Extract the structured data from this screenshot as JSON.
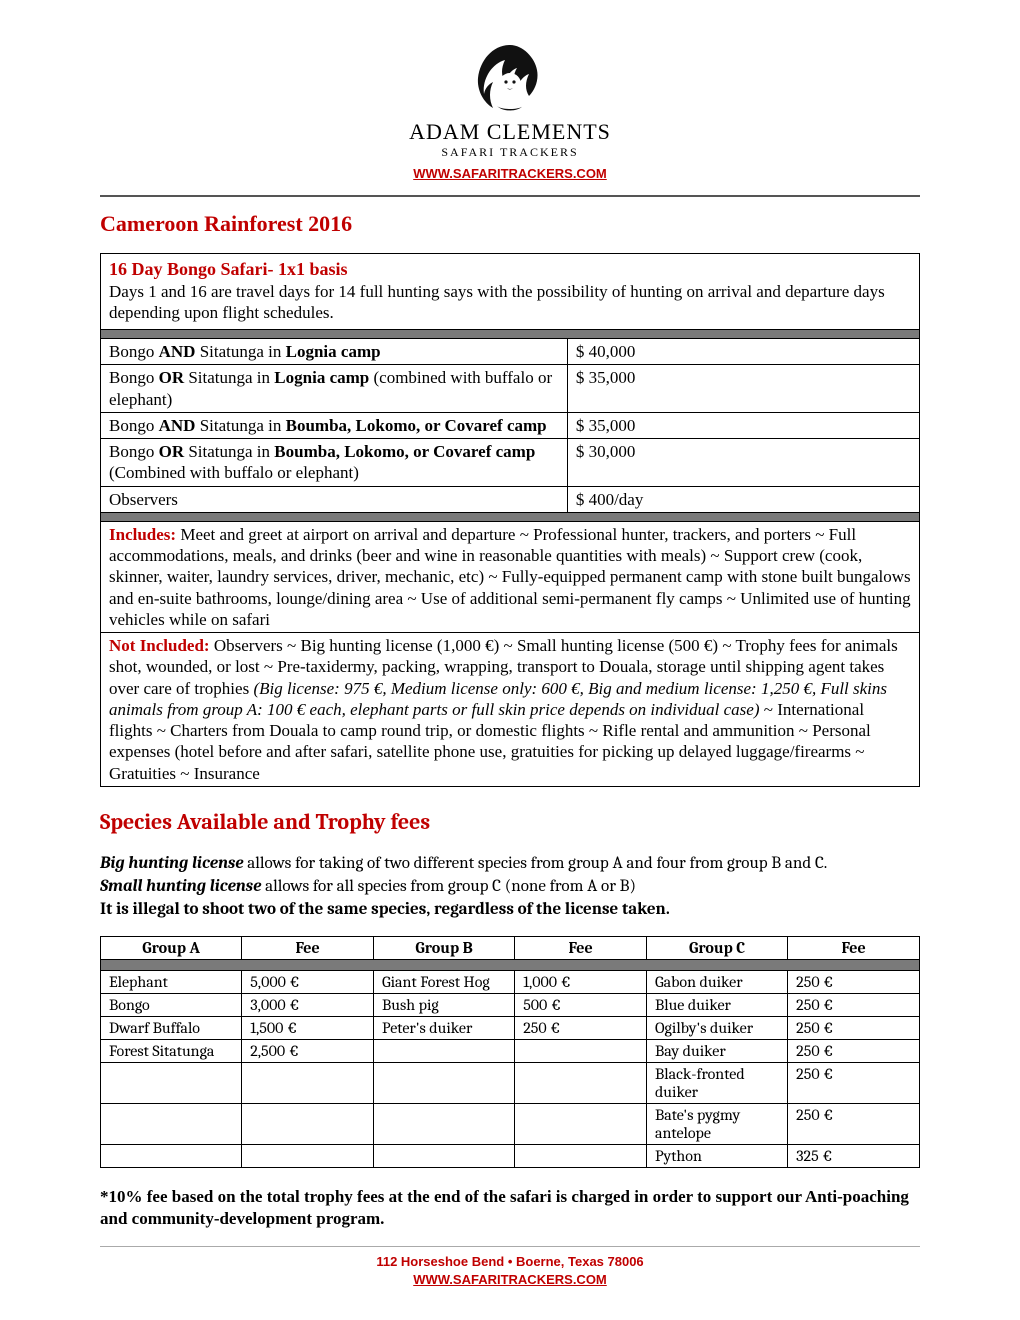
{
  "header": {
    "brand_top": "ADAM CLEMENTS",
    "brand_sub": "SAFARI TRACKERS",
    "website": "WWW.SAFARITRACKERS.COM"
  },
  "title": "Cameroon Rainforest 2016",
  "safari": {
    "heading": "16 Day Bongo Safari- 1x1 basis",
    "intro": "Days 1 and 16 are travel days for 14 full hunting says with the possibility of hunting on arrival and departure days depending upon flight schedules.",
    "rows": [
      {
        "desc_pre": "Bongo ",
        "bold1": "AND",
        "mid": " Sitatunga in ",
        "bold2": "Lognia camp",
        "desc_post": "",
        "price": "$ 40,000"
      },
      {
        "desc_pre": "Bongo ",
        "bold1": "OR",
        "mid": " Sitatunga in ",
        "bold2": "Lognia camp",
        "desc_post": " (combined with buffalo or elephant)",
        "price": "$ 35,000"
      },
      {
        "desc_pre": "Bongo ",
        "bold1": "AND",
        "mid": " Sitatunga in ",
        "bold2": "Boumba, Lokomo, or Covaref camp",
        "desc_post": "",
        "price": "$ 35,000"
      },
      {
        "desc_pre": "Bongo ",
        "bold1": "OR",
        "mid": "  Sitatunga in ",
        "bold2": "Boumba, Lokomo, or Covaref camp",
        "desc_post": " (Combined with buffalo or elephant)",
        "price": "$ 30,000"
      },
      {
        "desc_pre": "Observers",
        "bold1": "",
        "mid": "",
        "bold2": "",
        "desc_post": "",
        "price": "$ 400/day"
      }
    ],
    "includes_label": "Includes:",
    "includes_text": " Meet and greet at airport on arrival and departure ~ Professional hunter, trackers, and porters ~ Full accommodations, meals, and drinks (beer and wine in reasonable quantities with meals) ~ Support crew (cook, skinner, waiter, laundry services, driver, mechanic, etc) ~ Fully-equipped permanent camp with stone built bungalows and en-suite bathrooms, lounge/dining area ~ Use of additional semi-permanent fly camps ~ Unlimited use of hunting vehicles while on safari",
    "notincluded_label": "Not Included:",
    "notincluded_pre": " Observers ~ Big hunting license (1,000 €) ~ Small hunting license (500 €) ~ Trophy fees for animals shot, wounded, or lost ~ Pre-taxidermy, packing, wrapping, transport to Douala, storage until shipping agent takes over care of trophies ",
    "notincluded_italic": "(Big license: 975 €, Medium license only: 600 €, Big and medium license: 1,250 €, Full skins animals from group A: 100 € each, elephant parts or full skin price depends on individual case)",
    "notincluded_post": " ~ International flights ~ Charters from Douala to camp round trip, or domestic flights ~ Rifle rental and ammunition ~ Personal expenses (hotel before and after safari, satellite phone use, gratuities for picking up delayed luggage/firearms ~ Gratuities ~ Insurance"
  },
  "species": {
    "heading": "Species Available and Trophy fees",
    "license_big_label": "Big hunting license",
    "license_big_text": " allows for taking of two different species from group A and four from group B and C.",
    "license_small_label": "Small hunting license",
    "license_small_text": " allows for all species from group C (none from A or B)",
    "illegal_line": "It is illegal to shoot two of the same species, regardless of the license taken.",
    "columns": [
      "Group A",
      "Fee",
      "Group B",
      "Fee",
      "Group C",
      "Fee"
    ],
    "rows": [
      [
        "Elephant",
        "5,000 €",
        "Giant Forest Hog",
        "1,000 €",
        "Gabon duiker",
        "250 €"
      ],
      [
        "Bongo",
        "3,000 €",
        "Bush pig",
        "500 €",
        "Blue duiker",
        "250 €"
      ],
      [
        "Dwarf Buffalo",
        "1,500 €",
        "Peter's duiker",
        "250 €",
        "Ogilby's duiker",
        "250 €"
      ],
      [
        "Forest Sitatunga",
        "2,500 €",
        "",
        "",
        "Bay duiker",
        "250 €"
      ],
      [
        "",
        "",
        "",
        "",
        "Black-fronted duiker",
        "250 €"
      ],
      [
        "",
        "",
        "",
        "",
        "Bate's pygmy antelope",
        "250 €"
      ],
      [
        "",
        "",
        "",
        "",
        "Python",
        "325 €"
      ]
    ],
    "footnote": "*10% fee based on the total trophy fees at the end of the safari is charged in order to support our Anti-poaching and community-development program."
  },
  "footer": {
    "address": "112 Horseshoe Bend • Boerne, Texas 78006",
    "website": "WWW.SAFARITRACKERS.COM"
  }
}
